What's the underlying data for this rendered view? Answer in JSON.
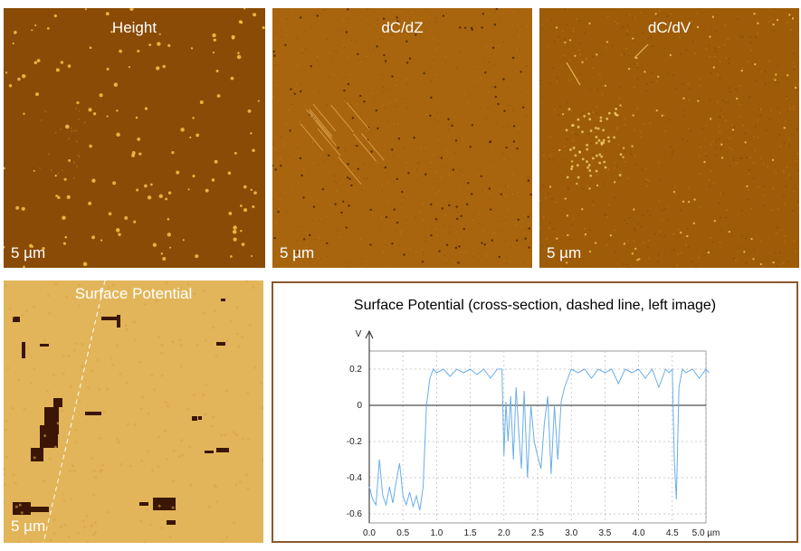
{
  "panels": {
    "height": {
      "title": "Height",
      "scale": "5 µm",
      "color": "#8a4b06"
    },
    "dcdz": {
      "title": "dC/dZ",
      "scale": "5 µm",
      "color": "#a8650e"
    },
    "dcdv": {
      "title": "dC/dV",
      "scale": "5 µm",
      "color": "#9e5c08"
    },
    "surface": {
      "title": "Surface Potential",
      "scale": "5 µm",
      "color": "#e2b55a"
    }
  },
  "chart_data": {
    "type": "line",
    "title": "Surface Potential (cross-section, dashed line, left image)",
    "ylabel": "V",
    "x_tick_labels": [
      "0.0",
      "0.5",
      "1.0",
      "1.5",
      "2.0",
      "2.5",
      "3.0",
      "3.5",
      "4.0",
      "4.5",
      "5.0 µm"
    ],
    "y_tick_labels": [
      "0.2",
      "0",
      "-0.2",
      "-0.4",
      "-0.6"
    ],
    "xlim": [
      0,
      5.0
    ],
    "ylim": [
      -0.65,
      0.3
    ],
    "grid": true,
    "line_color": "#6aaee8",
    "x": [
      0.0,
      0.05,
      0.1,
      0.15,
      0.2,
      0.25,
      0.3,
      0.35,
      0.4,
      0.45,
      0.5,
      0.55,
      0.6,
      0.65,
      0.7,
      0.75,
      0.8,
      0.85,
      0.9,
      0.95,
      1.0,
      1.1,
      1.2,
      1.3,
      1.4,
      1.5,
      1.6,
      1.7,
      1.8,
      1.9,
      1.97,
      2.0,
      2.03,
      2.06,
      2.1,
      2.14,
      2.18,
      2.22,
      2.26,
      2.3,
      2.35,
      2.4,
      2.45,
      2.5,
      2.55,
      2.6,
      2.65,
      2.7,
      2.75,
      2.8,
      2.85,
      2.9,
      2.95,
      3.0,
      3.1,
      3.2,
      3.3,
      3.4,
      3.5,
      3.6,
      3.7,
      3.8,
      3.9,
      4.0,
      4.1,
      4.2,
      4.3,
      4.4,
      4.45,
      4.5,
      4.53,
      4.56,
      4.6,
      4.65,
      4.7,
      4.8,
      4.9,
      5.0,
      5.05
    ],
    "y": [
      -0.45,
      -0.52,
      -0.55,
      -0.3,
      -0.5,
      -0.55,
      -0.45,
      -0.54,
      -0.42,
      -0.32,
      -0.5,
      -0.55,
      -0.48,
      -0.56,
      -0.5,
      -0.58,
      -0.45,
      0.0,
      0.15,
      0.2,
      0.18,
      0.2,
      0.16,
      0.2,
      0.18,
      0.2,
      0.17,
      0.2,
      0.15,
      0.2,
      0.2,
      -0.28,
      0.02,
      -0.2,
      0.05,
      -0.3,
      0.1,
      -0.15,
      -0.35,
      0.08,
      -0.4,
      0.0,
      -0.2,
      -0.28,
      -0.35,
      -0.1,
      0.05,
      -0.38,
      0.0,
      -0.3,
      0.02,
      0.1,
      0.15,
      0.2,
      0.18,
      0.2,
      0.15,
      0.2,
      0.18,
      0.2,
      0.12,
      0.2,
      0.18,
      0.2,
      0.15,
      0.2,
      0.1,
      0.2,
      0.18,
      0.2,
      -0.3,
      -0.52,
      0.1,
      0.2,
      0.18,
      0.2,
      0.15,
      0.2,
      0.18
    ]
  }
}
